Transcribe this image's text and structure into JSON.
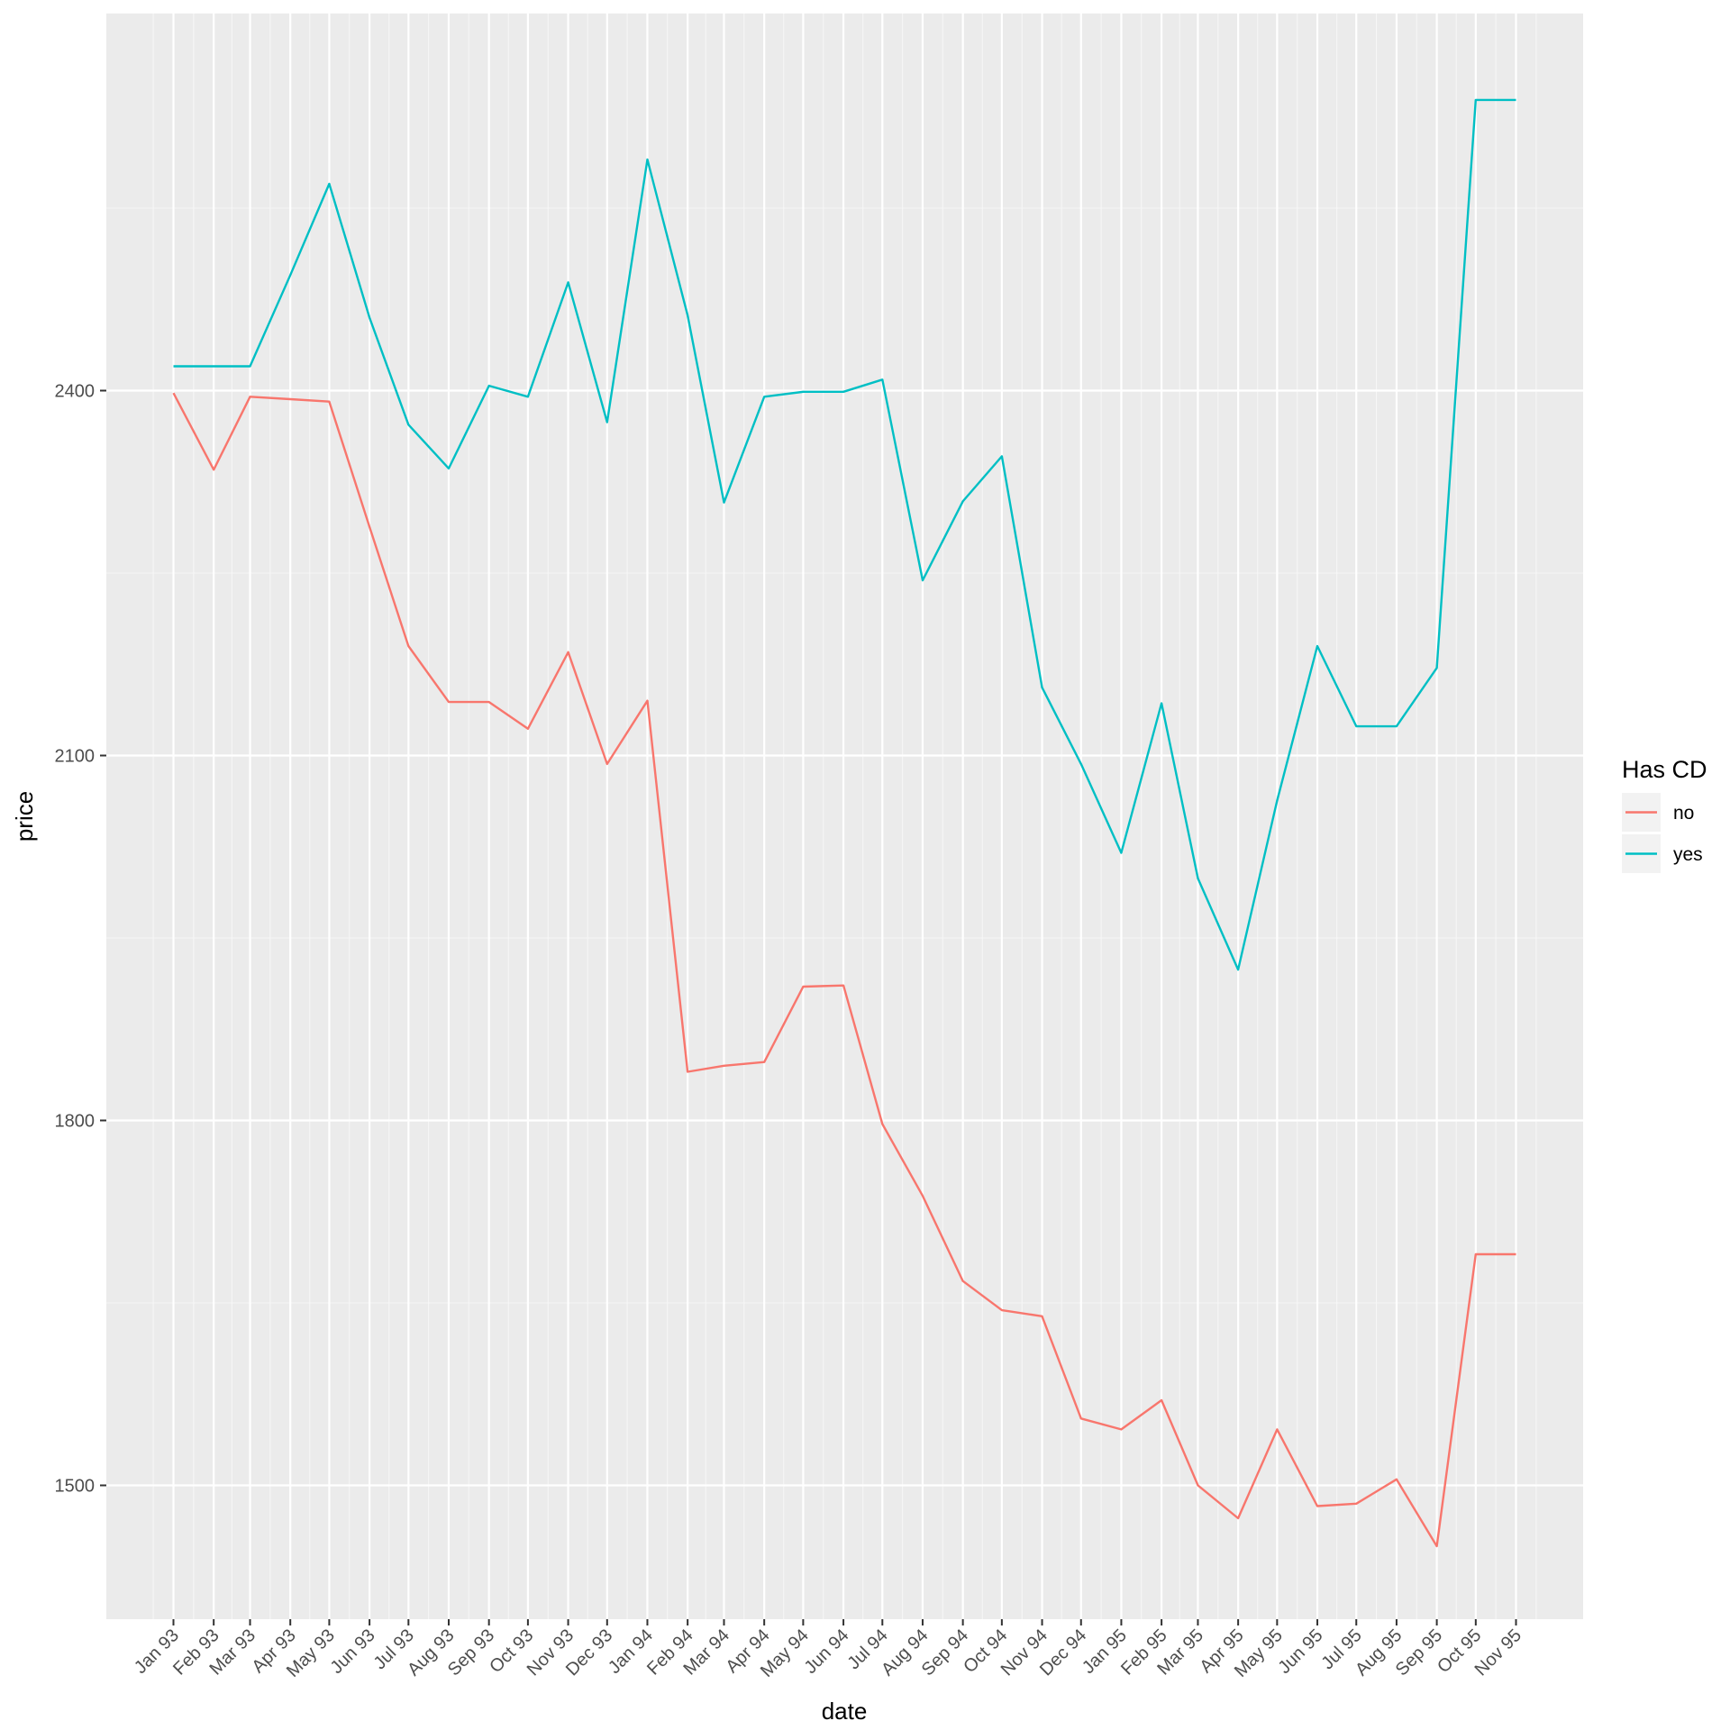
{
  "chart_data": {
    "type": "line",
    "xlabel": "date",
    "ylabel": "price",
    "x": [
      "Jan 93",
      "Feb 93",
      "Mar 93",
      "Apr 93",
      "May 93",
      "Jun 93",
      "Jul 93",
      "Aug 93",
      "Sep 93",
      "Oct 93",
      "Nov 93",
      "Dec 93",
      "Jan 94",
      "Feb 94",
      "Mar 94",
      "Apr 94",
      "May 94",
      "Jun 94",
      "Jul 94",
      "Aug 94",
      "Sep 94",
      "Oct 94",
      "Nov 94",
      "Dec 94",
      "Jan 95",
      "Feb 95",
      "Mar 95",
      "Apr 95",
      "May 95",
      "Jun 95",
      "Jul 95",
      "Aug 95",
      "Sep 95",
      "Oct 95",
      "Nov 95"
    ],
    "x_days": [
      0,
      31,
      59,
      90,
      120,
      151,
      181,
      212,
      243,
      273,
      304,
      334,
      365,
      396,
      424,
      455,
      485,
      516,
      546,
      577,
      608,
      638,
      669,
      699,
      730,
      761,
      789,
      820,
      850,
      881,
      911,
      942,
      973,
      1003,
      1034
    ],
    "x_range_days": [
      -51.7,
      1085.7
    ],
    "y_ticks": [
      1500,
      1800,
      2100,
      2400
    ],
    "ylim": [
      1390,
      2710
    ],
    "grid": true,
    "legend_position": "right",
    "legend_title": "Has CD",
    "series": [
      {
        "name": "no",
        "color": "#F8766D",
        "values": [
          2398,
          2335,
          2395,
          2393,
          2391,
          2288,
          2190,
          2144,
          2144,
          2122,
          2185,
          2093,
          2145,
          1840,
          1845,
          1848,
          1910,
          1911,
          1797,
          1738,
          1668,
          1644,
          1639,
          1555,
          1546,
          1570,
          1500,
          1473,
          1546,
          1483,
          1485,
          1505,
          1450,
          1690,
          1690
        ]
      },
      {
        "name": "yes",
        "color": "#00BFC4",
        "values": [
          2420,
          2420,
          2420,
          2495,
          2570,
          2460,
          2372,
          2336,
          2404,
          2395,
          2489,
          2374,
          2590,
          2462,
          2308,
          2395,
          2399,
          2399,
          2409,
          2244,
          2309,
          2346,
          2156,
          2093,
          2020,
          2143,
          1999,
          1924,
          2063,
          2190,
          2124,
          2124,
          2172,
          2639,
          2639
        ]
      }
    ]
  }
}
